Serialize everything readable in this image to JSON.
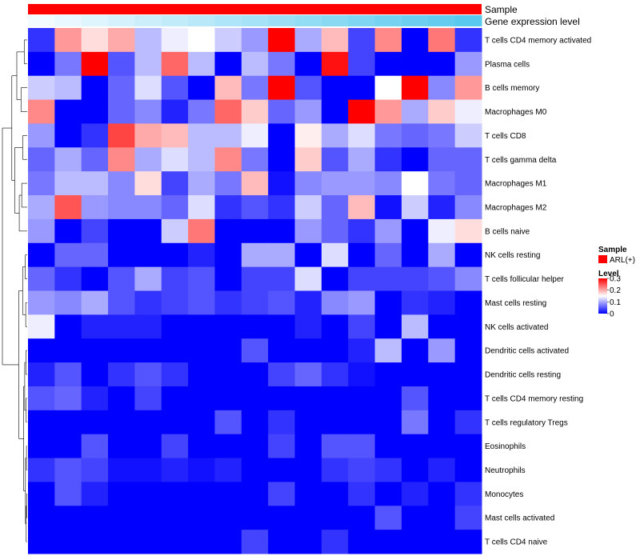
{
  "chart_data": {
    "type": "heatmap",
    "annotation_tracks": [
      {
        "name": "Sample",
        "color": "#ff0000"
      },
      {
        "name": "Gene expression level",
        "gradient": [
          "#f5fcff",
          "#56c8ee"
        ]
      }
    ],
    "rows": [
      "T cells CD4 memory activated",
      "Plasma cells",
      "B cells memory",
      "Macrophages M0",
      "T cells CD8",
      "T cells gamma delta",
      "Macrophages M1",
      "Macrophages M2",
      "B cells naive",
      "NK cells resting",
      "T cells follicular helper",
      "Mast cells resting",
      "NK cells activated",
      "Dendritic cells activated",
      "Dendritic cells resting",
      "T cells CD4 memory resting",
      "T cells regulatory  Tregs",
      "Eosinophils",
      "Neutrophils",
      "Monocytes",
      "Mast cells activated",
      "T cells CD4 naive"
    ],
    "n_columns": 17,
    "values": [
      [
        0.03,
        0.21,
        0.17,
        0.2,
        0.11,
        0.14,
        0.15,
        0.12,
        0.09,
        0.3,
        0.1,
        0.19,
        0.04,
        0.22,
        0.0,
        0.23,
        0.03
      ],
      [
        0.0,
        0.07,
        0.3,
        0.05,
        0.11,
        0.24,
        0.11,
        0.0,
        0.11,
        0.07,
        0.0,
        0.29,
        0.04,
        0.0,
        0.0,
        0.0,
        0.09
      ],
      [
        0.12,
        0.11,
        0.0,
        0.06,
        0.13,
        0.05,
        0.0,
        0.19,
        0.07,
        0.3,
        0.05,
        0.0,
        0.0,
        0.15,
        0.3,
        0.08,
        0.21
      ],
      [
        0.22,
        0.0,
        0.0,
        0.06,
        0.08,
        0.02,
        0.07,
        0.24,
        0.18,
        0.06,
        0.09,
        0.0,
        0.3,
        0.21,
        0.1,
        0.18,
        0.14
      ],
      [
        0.09,
        0.0,
        0.03,
        0.26,
        0.2,
        0.19,
        0.11,
        0.11,
        0.14,
        0.0,
        0.16,
        0.1,
        0.13,
        0.07,
        0.06,
        0.07,
        0.12
      ],
      [
        0.06,
        0.1,
        0.06,
        0.22,
        0.1,
        0.13,
        0.11,
        0.22,
        0.07,
        0.0,
        0.18,
        0.05,
        0.1,
        0.03,
        0.0,
        0.06,
        0.06
      ],
      [
        0.07,
        0.11,
        0.11,
        0.08,
        0.17,
        0.04,
        0.1,
        0.07,
        0.19,
        0.01,
        0.08,
        0.09,
        0.09,
        0.08,
        0.15,
        0.07,
        0.06
      ],
      [
        0.1,
        0.25,
        0.09,
        0.08,
        0.08,
        0.06,
        0.13,
        0.03,
        0.05,
        0.03,
        0.12,
        0.06,
        0.19,
        0.01,
        0.12,
        0.02,
        0.08
      ],
      [
        0.09,
        0.0,
        0.04,
        0.0,
        0.0,
        0.12,
        0.23,
        0.0,
        0.0,
        0.0,
        0.09,
        0.06,
        0.03,
        0.09,
        0.0,
        0.14,
        0.17
      ],
      [
        0.0,
        0.06,
        0.06,
        0.0,
        0.0,
        0.0,
        0.02,
        0.0,
        0.1,
        0.1,
        0.0,
        0.13,
        0.0,
        0.06,
        0.0,
        0.1,
        0.0
      ],
      [
        0.06,
        0.03,
        0.0,
        0.05,
        0.1,
        0.04,
        0.05,
        0.0,
        0.04,
        0.04,
        0.13,
        0.0,
        0.04,
        0.04,
        0.04,
        0.05,
        0.08
      ],
      [
        0.09,
        0.08,
        0.1,
        0.05,
        0.03,
        0.04,
        0.05,
        0.03,
        0.04,
        0.05,
        0.02,
        0.08,
        0.09,
        0.0,
        0.03,
        0.02,
        0.0
      ],
      [
        0.14,
        0.0,
        0.02,
        0.02,
        0.02,
        0.0,
        0.0,
        0.0,
        0.0,
        0.0,
        0.02,
        0.0,
        0.04,
        0.0,
        0.11,
        0.0,
        0.0
      ],
      [
        0.0,
        0.0,
        0.0,
        0.0,
        0.0,
        0.0,
        0.0,
        0.0,
        0.05,
        0.0,
        0.0,
        0.0,
        0.02,
        0.11,
        0.0,
        0.09,
        0.0
      ],
      [
        0.02,
        0.05,
        0.0,
        0.03,
        0.05,
        0.03,
        0.0,
        0.0,
        0.0,
        0.04,
        0.06,
        0.03,
        0.01,
        0.0,
        0.0,
        0.0,
        0.0
      ],
      [
        0.05,
        0.06,
        0.02,
        0.0,
        0.04,
        0.0,
        0.0,
        0.0,
        0.0,
        0.0,
        0.0,
        0.0,
        0.0,
        0.0,
        0.05,
        0.0,
        0.0
      ],
      [
        0.0,
        0.0,
        0.0,
        0.0,
        0.0,
        0.0,
        0.0,
        0.05,
        0.0,
        0.03,
        0.0,
        0.0,
        0.0,
        0.0,
        0.07,
        0.0,
        0.03
      ],
      [
        0.0,
        0.0,
        0.05,
        0.0,
        0.0,
        0.04,
        0.0,
        0.0,
        0.0,
        0.04,
        0.0,
        0.05,
        0.05,
        0.0,
        0.0,
        0.0,
        0.0
      ],
      [
        0.03,
        0.05,
        0.04,
        0.01,
        0.01,
        0.02,
        0.01,
        0.02,
        0.0,
        0.0,
        0.0,
        0.03,
        0.04,
        0.03,
        0.0,
        0.02,
        0.0
      ],
      [
        0.0,
        0.05,
        0.02,
        0.0,
        0.0,
        0.0,
        0.0,
        0.0,
        0.0,
        0.04,
        0.0,
        0.0,
        0.03,
        0.0,
        0.02,
        0.0,
        0.03
      ],
      [
        0.0,
        0.0,
        0.0,
        0.0,
        0.0,
        0.0,
        0.0,
        0.0,
        0.0,
        0.0,
        0.0,
        0.0,
        0.0,
        0.05,
        0.0,
        0.0,
        0.04
      ],
      [
        0.0,
        0.0,
        0.0,
        0.0,
        0.0,
        0.0,
        0.0,
        0.0,
        0.04,
        0.0,
        0.0,
        0.03,
        0.0,
        0.0,
        0.0,
        0.0,
        0.0
      ]
    ],
    "gene_expression_level": [
      0.02,
      0.08,
      0.14,
      0.2,
      0.26,
      0.32,
      0.38,
      0.44,
      0.5,
      0.56,
      0.62,
      0.68,
      0.74,
      0.8,
      0.86,
      0.92,
      0.98
    ],
    "color_scale": {
      "min": 0,
      "max": 0.3,
      "stops": [
        {
          "v": 0,
          "color": "#0000ff"
        },
        {
          "v": 0.15,
          "color": "#ffffff"
        },
        {
          "v": 0.3,
          "color": "#ff0000"
        }
      ]
    },
    "legends": [
      {
        "title": "Sample",
        "items": [
          {
            "label": "ARL(+)",
            "color": "#ff0000"
          }
        ]
      },
      {
        "title": "Level",
        "ticks": [
          "0.3",
          "0.2",
          "0.1",
          "0"
        ]
      }
    ]
  }
}
